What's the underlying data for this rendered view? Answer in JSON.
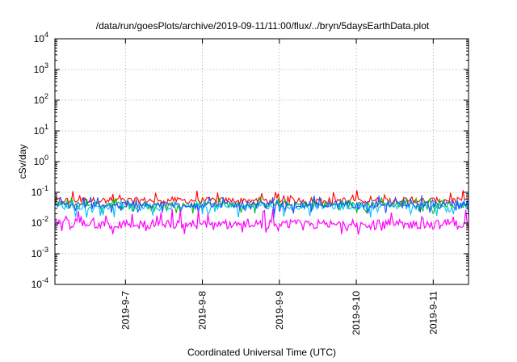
{
  "chart_data": {
    "type": "line",
    "title": "/data/run/goesPlots/archive/2019-09-11/11:00/flux/../bryn/5daysEarthData.plot",
    "xlabel": "Coordinated Universal Time (UTC)",
    "ylabel": "cSv/day",
    "yscale": "log",
    "ylim": [
      0.0001,
      10000
    ],
    "xlim": [
      "2019-09-06T02:00",
      "2019-09-11T11:00"
    ],
    "x_ticks": [
      {
        "date": "2019-09-07",
        "label": "2019-9-7"
      },
      {
        "date": "2019-09-08",
        "label": "2019-9-8"
      },
      {
        "date": "2019-09-09",
        "label": "2019-9-9"
      },
      {
        "date": "2019-09-10",
        "label": "2019-9-10"
      },
      {
        "date": "2019-09-11",
        "label": "2019-9-11"
      }
    ],
    "y_ticks": [
      {
        "base": "10",
        "exp": "-4"
      },
      {
        "base": "10",
        "exp": "-3"
      },
      {
        "base": "10",
        "exp": "-2"
      },
      {
        "base": "10",
        "exp": "-1"
      },
      {
        "base": "10",
        "exp": "0"
      },
      {
        "base": "10",
        "exp": "1"
      },
      {
        "base": "10",
        "exp": "2"
      },
      {
        "base": "10",
        "exp": "3"
      },
      {
        "base": "10",
        "exp": "4"
      }
    ],
    "grid": true,
    "series": [
      {
        "color": "#ff0000",
        "approx_level": 0.055,
        "approx_range": [
          0.035,
          0.12
        ]
      },
      {
        "color": "#00c000",
        "approx_level": 0.04,
        "approx_range": [
          0.02,
          0.07
        ]
      },
      {
        "color": "#00c0ff",
        "approx_level": 0.035,
        "approx_range": [
          0.015,
          0.06
        ]
      },
      {
        "color": "#2050ff",
        "approx_level": 0.04,
        "approx_range": [
          0.02,
          0.08
        ]
      },
      {
        "color": "#ff00ff",
        "approx_level": 0.009,
        "approx_range": [
          0.004,
          0.03
        ]
      }
    ]
  }
}
